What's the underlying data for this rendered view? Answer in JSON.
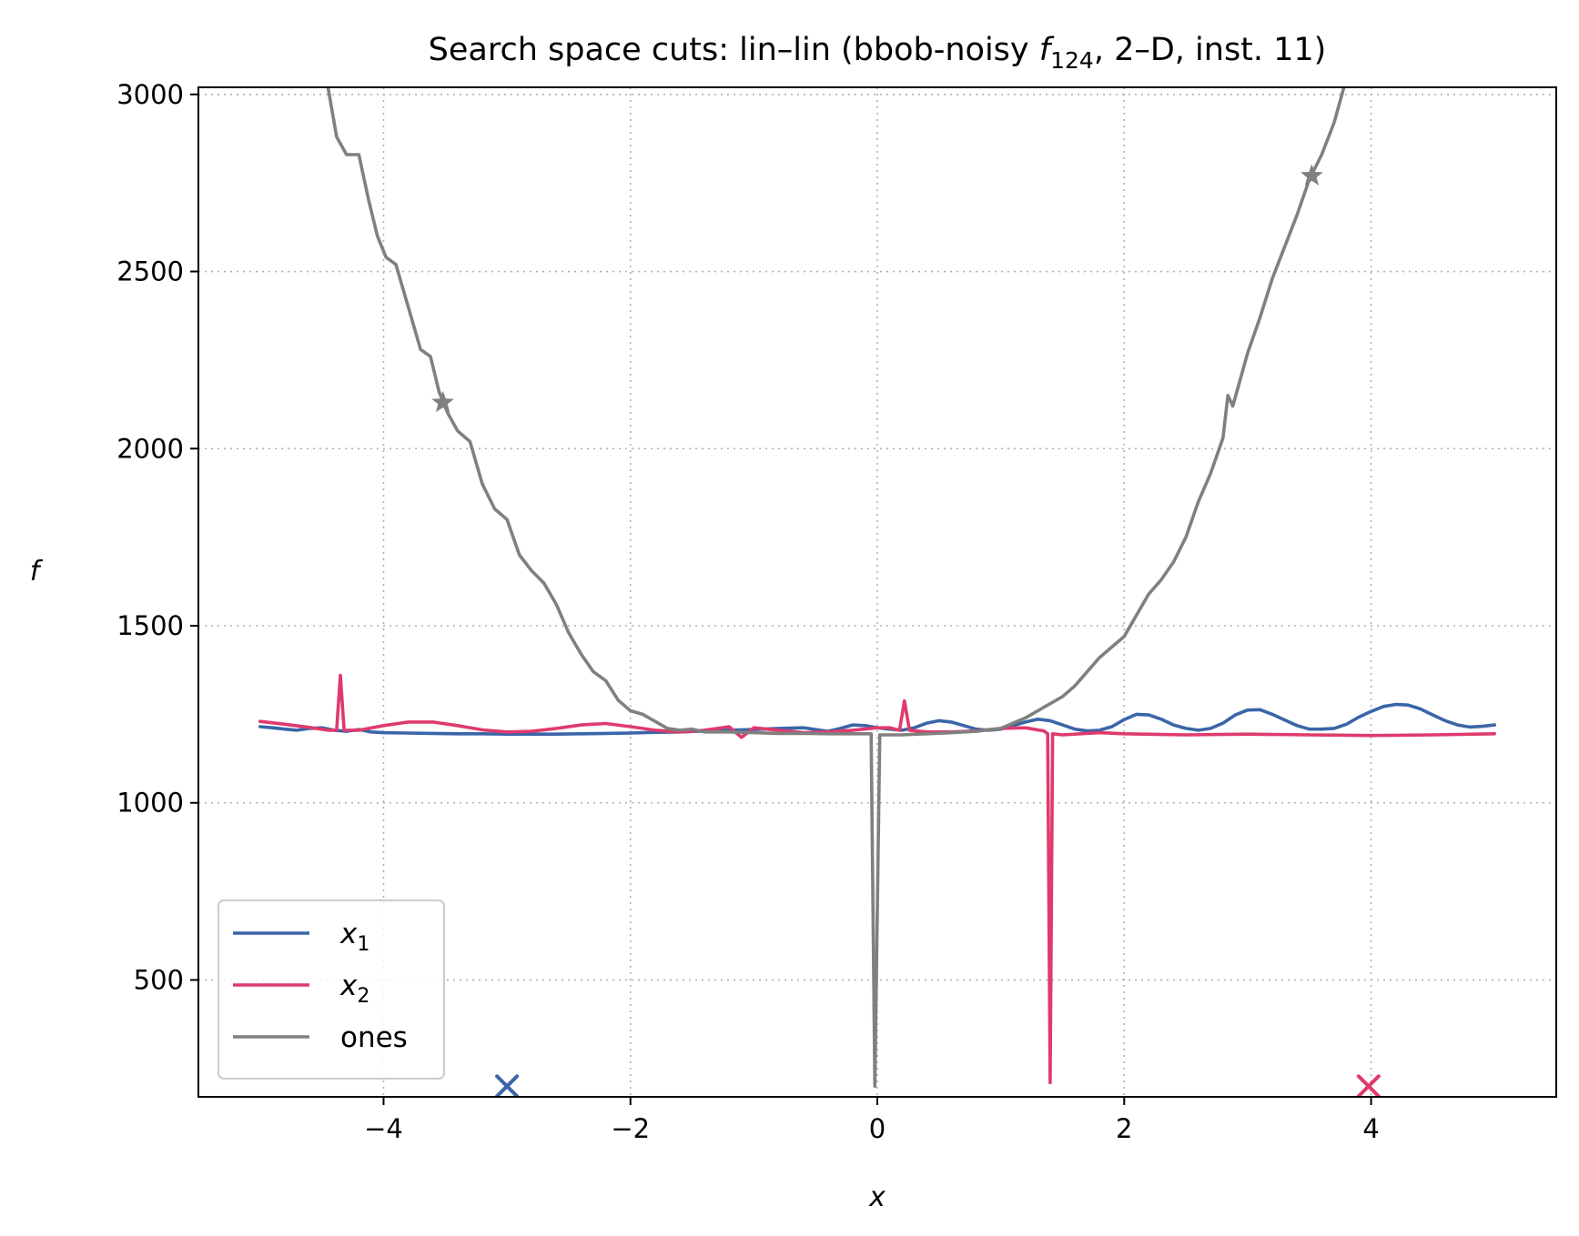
{
  "chart_data": {
    "type": "line",
    "title_prefix": "Search space cuts: lin–lin (bbob-noisy ",
    "title_f": "f",
    "title_sub": "124",
    "title_suffix": ", 2–D, inst. 11)",
    "xlabel": "x",
    "ylabel": "f",
    "xlim": [
      -5.5,
      5.5
    ],
    "ylim": [
      170,
      3020
    ],
    "xticks": [
      -4,
      -2,
      0,
      2,
      4
    ],
    "xtick_labels": [
      "−4",
      "−2",
      "0",
      "2",
      "4"
    ],
    "yticks": [
      500,
      1000,
      1500,
      2000,
      2500,
      3000
    ],
    "ytick_labels": [
      "500",
      "1000",
      "1500",
      "2000",
      "2500",
      "3000"
    ],
    "grid": true,
    "legend_position": "lower-left",
    "series": [
      {
        "name": "x",
        "sub": "1",
        "color": "#3a65a8",
        "points": [
          [
            -5.0,
            1215
          ],
          [
            -4.9,
            1212
          ],
          [
            -4.8,
            1208
          ],
          [
            -4.7,
            1205
          ],
          [
            -4.6,
            1210
          ],
          [
            -4.5,
            1212
          ],
          [
            -4.4,
            1205
          ],
          [
            -4.3,
            1202
          ],
          [
            -4.2,
            1207
          ],
          [
            -4.1,
            1200
          ],
          [
            -4.0,
            1198
          ],
          [
            -3.8,
            1197
          ],
          [
            -3.6,
            1196
          ],
          [
            -3.4,
            1195
          ],
          [
            -3.2,
            1195
          ],
          [
            -3.0,
            1194
          ],
          [
            -2.8,
            1194
          ],
          [
            -2.6,
            1194
          ],
          [
            -2.4,
            1195
          ],
          [
            -2.2,
            1196
          ],
          [
            -2.0,
            1197
          ],
          [
            -1.8,
            1199
          ],
          [
            -1.6,
            1200
          ],
          [
            -1.4,
            1203
          ],
          [
            -1.2,
            1205
          ],
          [
            -1.0,
            1207
          ],
          [
            -0.8,
            1210
          ],
          [
            -0.6,
            1212
          ],
          [
            -0.5,
            1207
          ],
          [
            -0.4,
            1202
          ],
          [
            -0.3,
            1210
          ],
          [
            -0.2,
            1220
          ],
          [
            -0.1,
            1218
          ],
          [
            0.0,
            1212
          ],
          [
            0.1,
            1208
          ],
          [
            0.2,
            1205
          ],
          [
            0.3,
            1212
          ],
          [
            0.4,
            1225
          ],
          [
            0.5,
            1232
          ],
          [
            0.6,
            1228
          ],
          [
            0.7,
            1218
          ],
          [
            0.8,
            1208
          ],
          [
            0.9,
            1205
          ],
          [
            1.0,
            1208
          ],
          [
            1.1,
            1218
          ],
          [
            1.2,
            1228
          ],
          [
            1.3,
            1236
          ],
          [
            1.4,
            1232
          ],
          [
            1.5,
            1220
          ],
          [
            1.6,
            1208
          ],
          [
            1.7,
            1203
          ],
          [
            1.8,
            1205
          ],
          [
            1.9,
            1215
          ],
          [
            2.0,
            1235
          ],
          [
            2.1,
            1250
          ],
          [
            2.2,
            1248
          ],
          [
            2.3,
            1236
          ],
          [
            2.4,
            1220
          ],
          [
            2.5,
            1210
          ],
          [
            2.6,
            1205
          ],
          [
            2.7,
            1210
          ],
          [
            2.8,
            1225
          ],
          [
            2.9,
            1248
          ],
          [
            3.0,
            1262
          ],
          [
            3.1,
            1263
          ],
          [
            3.2,
            1250
          ],
          [
            3.3,
            1234
          ],
          [
            3.4,
            1218
          ],
          [
            3.5,
            1208
          ],
          [
            3.6,
            1208
          ],
          [
            3.7,
            1210
          ],
          [
            3.8,
            1222
          ],
          [
            3.9,
            1242
          ],
          [
            4.0,
            1258
          ],
          [
            4.1,
            1272
          ],
          [
            4.2,
            1278
          ],
          [
            4.3,
            1276
          ],
          [
            4.4,
            1265
          ],
          [
            4.5,
            1248
          ],
          [
            4.6,
            1232
          ],
          [
            4.7,
            1220
          ],
          [
            4.8,
            1214
          ],
          [
            4.9,
            1216
          ],
          [
            5.0,
            1220
          ]
        ]
      },
      {
        "name": "x",
        "sub": "2",
        "color": "#e03a6c",
        "points": [
          [
            -5.0,
            1230
          ],
          [
            -4.8,
            1222
          ],
          [
            -4.6,
            1213
          ],
          [
            -4.45,
            1205
          ],
          [
            -4.38,
            1205
          ],
          [
            -4.35,
            1360
          ],
          [
            -4.32,
            1205
          ],
          [
            -4.2,
            1205
          ],
          [
            -4.0,
            1218
          ],
          [
            -3.8,
            1228
          ],
          [
            -3.6,
            1228
          ],
          [
            -3.4,
            1218
          ],
          [
            -3.2,
            1206
          ],
          [
            -3.0,
            1200
          ],
          [
            -2.8,
            1202
          ],
          [
            -2.6,
            1210
          ],
          [
            -2.4,
            1220
          ],
          [
            -2.2,
            1224
          ],
          [
            -2.0,
            1215
          ],
          [
            -1.8,
            1205
          ],
          [
            -1.6,
            1200
          ],
          [
            -1.4,
            1205
          ],
          [
            -1.2,
            1215
          ],
          [
            -1.1,
            1185
          ],
          [
            -1.0,
            1212
          ],
          [
            -0.8,
            1205
          ],
          [
            -0.6,
            1198
          ],
          [
            -0.4,
            1200
          ],
          [
            -0.2,
            1205
          ],
          [
            0.0,
            1212
          ],
          [
            0.1,
            1212
          ],
          [
            0.18,
            1205
          ],
          [
            0.22,
            1288
          ],
          [
            0.26,
            1205
          ],
          [
            0.4,
            1200
          ],
          [
            0.6,
            1200
          ],
          [
            0.8,
            1203
          ],
          [
            1.0,
            1210
          ],
          [
            1.2,
            1212
          ],
          [
            1.35,
            1203
          ],
          [
            1.38,
            1195
          ],
          [
            1.4,
            210
          ],
          [
            1.42,
            1195
          ],
          [
            1.5,
            1192
          ],
          [
            1.8,
            1198
          ],
          [
            2.0,
            1195
          ],
          [
            2.5,
            1192
          ],
          [
            3.0,
            1194
          ],
          [
            3.5,
            1192
          ],
          [
            4.0,
            1190
          ],
          [
            4.5,
            1192
          ],
          [
            5.0,
            1195
          ]
        ]
      },
      {
        "name": "ones",
        "sub": "",
        "color": "#808080",
        "points": [
          [
            -4.45,
            3020
          ],
          [
            -4.38,
            2880
          ],
          [
            -4.3,
            2830
          ],
          [
            -4.2,
            2830
          ],
          [
            -4.12,
            2700
          ],
          [
            -4.05,
            2600
          ],
          [
            -3.98,
            2540
          ],
          [
            -3.9,
            2520
          ],
          [
            -3.8,
            2400
          ],
          [
            -3.7,
            2280
          ],
          [
            -3.62,
            2260
          ],
          [
            -3.55,
            2160
          ],
          [
            -3.48,
            2100
          ],
          [
            -3.4,
            2050
          ],
          [
            -3.3,
            2020
          ],
          [
            -3.2,
            1900
          ],
          [
            -3.1,
            1830
          ],
          [
            -3.0,
            1800
          ],
          [
            -2.9,
            1700
          ],
          [
            -2.8,
            1655
          ],
          [
            -2.7,
            1620
          ],
          [
            -2.6,
            1560
          ],
          [
            -2.5,
            1480
          ],
          [
            -2.4,
            1420
          ],
          [
            -2.3,
            1370
          ],
          [
            -2.2,
            1345
          ],
          [
            -2.1,
            1290
          ],
          [
            -2.0,
            1260
          ],
          [
            -1.9,
            1250
          ],
          [
            -1.8,
            1230
          ],
          [
            -1.7,
            1210
          ],
          [
            -1.6,
            1205
          ],
          [
            -1.5,
            1208
          ],
          [
            -1.4,
            1200
          ],
          [
            -1.2,
            1200
          ],
          [
            -1.0,
            1198
          ],
          [
            -0.8,
            1196
          ],
          [
            -0.6,
            1196
          ],
          [
            -0.4,
            1195
          ],
          [
            -0.2,
            1195
          ],
          [
            -0.05,
            1195
          ],
          [
            -0.02,
            200
          ],
          [
            0.02,
            1192
          ],
          [
            0.2,
            1192
          ],
          [
            0.4,
            1195
          ],
          [
            0.6,
            1198
          ],
          [
            0.8,
            1202
          ],
          [
            1.0,
            1210
          ],
          [
            1.2,
            1240
          ],
          [
            1.4,
            1280
          ],
          [
            1.5,
            1300
          ],
          [
            1.6,
            1330
          ],
          [
            1.7,
            1370
          ],
          [
            1.8,
            1410
          ],
          [
            1.9,
            1440
          ],
          [
            2.0,
            1470
          ],
          [
            2.1,
            1530
          ],
          [
            2.2,
            1590
          ],
          [
            2.3,
            1630
          ],
          [
            2.4,
            1680
          ],
          [
            2.5,
            1750
          ],
          [
            2.6,
            1850
          ],
          [
            2.7,
            1930
          ],
          [
            2.8,
            2030
          ],
          [
            2.84,
            2150
          ],
          [
            2.88,
            2120
          ],
          [
            3.0,
            2270
          ],
          [
            3.1,
            2370
          ],
          [
            3.2,
            2480
          ],
          [
            3.3,
            2570
          ],
          [
            3.4,
            2660
          ],
          [
            3.5,
            2760
          ],
          [
            3.6,
            2830
          ],
          [
            3.7,
            2920
          ],
          [
            3.78,
            3020
          ]
        ]
      }
    ],
    "star_markers": [
      [
        -3.52,
        2130
      ],
      [
        3.52,
        2770
      ]
    ],
    "x_markers": [
      {
        "x": -3.0,
        "y": 200,
        "color": "#3a65a8"
      },
      {
        "x": 3.98,
        "y": 200,
        "color": "#e03a6c"
      }
    ]
  }
}
